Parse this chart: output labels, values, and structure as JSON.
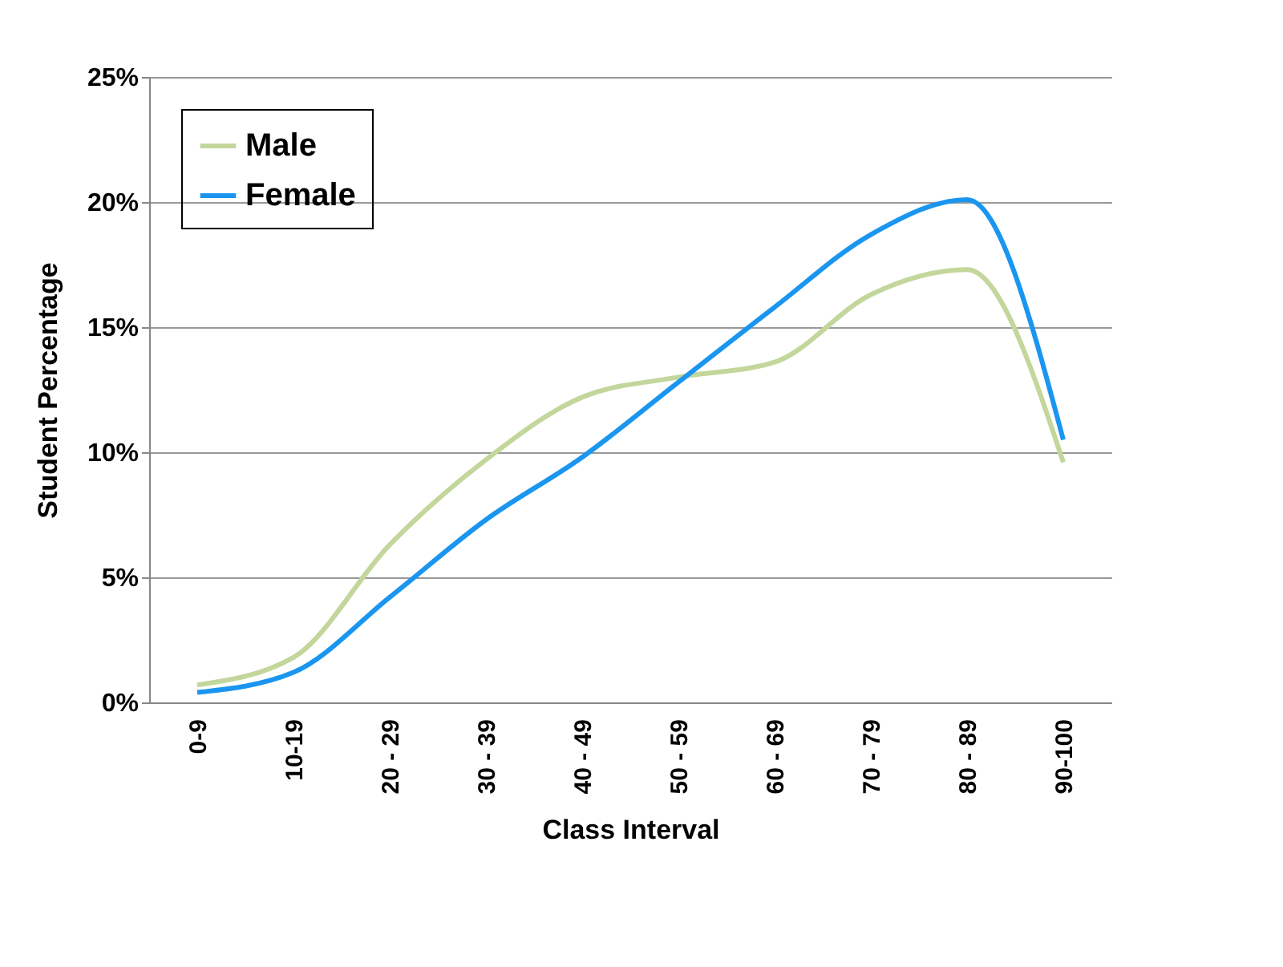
{
  "chart_data": {
    "type": "line",
    "xlabel": "Class Interval",
    "ylabel": "Student Percentage",
    "categories": [
      "0-9",
      "10-19",
      "20 - 29",
      "30 - 39",
      "40 - 49",
      "50 - 59",
      "60 - 69",
      "70 - 79",
      "80 - 89",
      "90-100"
    ],
    "series": [
      {
        "name": "Male",
        "color": "#c3d69b",
        "values": [
          0.7,
          1.8,
          6.3,
          9.7,
          12.2,
          13.0,
          13.6,
          16.3,
          17.3,
          9.6
        ]
      },
      {
        "name": "Female",
        "color": "#1a96f0",
        "values": [
          0.4,
          1.2,
          4.2,
          7.3,
          9.8,
          12.8,
          15.8,
          18.7,
          20.1,
          10.5
        ]
      }
    ],
    "ylim": [
      0,
      25
    ],
    "yticks": [
      {
        "value": 0,
        "label": "0%"
      },
      {
        "value": 5,
        "label": "5%"
      },
      {
        "value": 10,
        "label": "10%"
      },
      {
        "value": 15,
        "label": "15%"
      },
      {
        "value": 20,
        "label": "20%"
      },
      {
        "value": 25,
        "label": "25%"
      }
    ],
    "grid": "y",
    "legend": "top left",
    "marker": "none",
    "line_style": "solid"
  }
}
